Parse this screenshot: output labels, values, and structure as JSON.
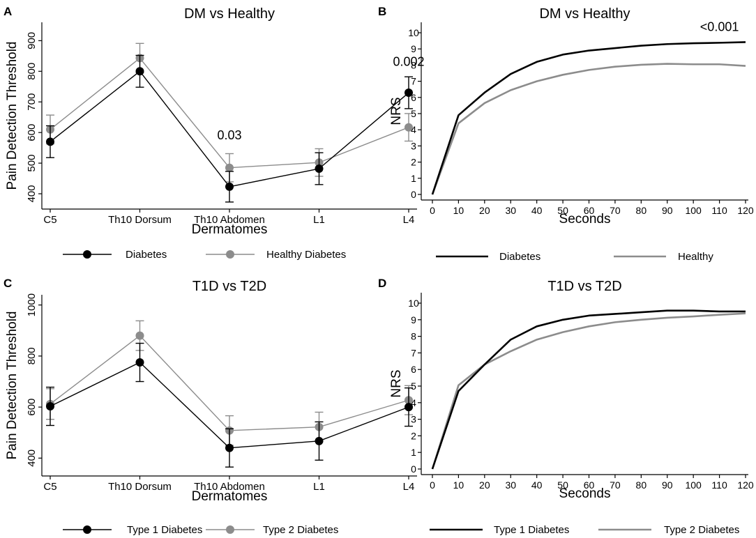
{
  "figure": {
    "panels": [
      "A",
      "B",
      "C",
      "D"
    ],
    "x_label_dermatomes": "Dermatomes",
    "x_label_seconds": "Seconds"
  },
  "colors": {
    "primary": "#000000",
    "secondary": "#8c8c8c",
    "axis": "#000000"
  },
  "chart_data": [
    {
      "panel": "A",
      "type": "line",
      "title": "DM vs Healthy",
      "xlabel": "Dermatomes",
      "ylabel": "Pain Detection Threshold",
      "categories": [
        "C5",
        "Th10 Dorsum",
        "Th10 Abdomen",
        "L1",
        "L4"
      ],
      "yticks": [
        400,
        500,
        600,
        700,
        800,
        900
      ],
      "ylim": [
        350,
        960
      ],
      "series": [
        {
          "name": "Diabetes",
          "color": "#000000",
          "values": [
            570,
            800,
            423,
            482,
            730
          ],
          "err": [
            52,
            52,
            50,
            52,
            52
          ]
        },
        {
          "name": "Healthy Diabetes",
          "color": "#8c8c8c",
          "values": [
            610,
            843,
            485,
            502,
            617
          ],
          "err": [
            47,
            48,
            46,
            45,
            45
          ]
        }
      ],
      "annotations": [
        {
          "text": "0.03",
          "category": "Th10 Abdomen",
          "y": 578
        },
        {
          "text": "0.002",
          "category": "L4",
          "y": 818
        }
      ],
      "legend": [
        "Diabetes",
        "Healthy Diabetes"
      ]
    },
    {
      "panel": "B",
      "type": "line",
      "title": "DM vs Healthy",
      "xlabel": "Seconds",
      "ylabel": "NRS",
      "x": [
        0,
        10,
        20,
        30,
        40,
        50,
        60,
        70,
        80,
        90,
        100,
        110,
        120
      ],
      "xticks": [
        0,
        10,
        20,
        30,
        40,
        50,
        60,
        70,
        80,
        90,
        100,
        110,
        120
      ],
      "yticks": [
        0,
        1,
        2,
        3,
        4,
        5,
        6,
        7,
        8,
        9,
        10
      ],
      "ylim": [
        0,
        10
      ],
      "series": [
        {
          "name": "Diabetes",
          "color": "#000000",
          "values": [
            0,
            4.9,
            6.3,
            7.45,
            8.2,
            8.65,
            8.9,
            9.05,
            9.2,
            9.3,
            9.35,
            9.38,
            9.42
          ]
        },
        {
          "name": "Healthy",
          "color": "#8c8c8c",
          "values": [
            0,
            4.4,
            5.65,
            6.45,
            7.0,
            7.4,
            7.7,
            7.9,
            8.02,
            8.08,
            8.05,
            8.05,
            7.95
          ]
        }
      ],
      "annotations": [
        {
          "text": "<0.001",
          "x": 110,
          "y": 10.1
        }
      ],
      "legend": [
        "Diabetes",
        "Healthy"
      ]
    },
    {
      "panel": "C",
      "type": "line",
      "title": "T1D vs T2D",
      "xlabel": "Dermatomes",
      "ylabel": "Pain Detection Threshold",
      "categories": [
        "C5",
        "Th10 Dorsum",
        "Th10 Abdomen",
        "L1",
        "L4"
      ],
      "yticks": [
        400,
        600,
        800,
        1000
      ],
      "ylim": [
        330,
        1040
      ],
      "series": [
        {
          "name": "Type 1 Diabetes",
          "color": "#000000",
          "values": [
            603,
            775,
            440,
            467,
            600
          ],
          "err": [
            75,
            75,
            75,
            75,
            75
          ]
        },
        {
          "name": "Type 2 Diabetes",
          "color": "#8c8c8c",
          "values": [
            612,
            880,
            508,
            522,
            627
          ],
          "err": [
            60,
            58,
            58,
            58,
            57
          ]
        }
      ],
      "legend": [
        "Type 1 Diabetes",
        "Type 2 Diabetes"
      ]
    },
    {
      "panel": "D",
      "type": "line",
      "title": "T1D vs T2D",
      "xlabel": "Seconds",
      "ylabel": "NRS",
      "x": [
        0,
        10,
        20,
        30,
        40,
        50,
        60,
        70,
        80,
        90,
        100,
        110,
        120
      ],
      "xticks": [
        0,
        10,
        20,
        30,
        40,
        50,
        60,
        70,
        80,
        90,
        100,
        110,
        120
      ],
      "yticks": [
        0,
        1,
        2,
        3,
        4,
        5,
        6,
        7,
        8,
        9,
        10
      ],
      "ylim": [
        0,
        10
      ],
      "series": [
        {
          "name": "Type 1 Diabetes",
          "color": "#000000",
          "values": [
            0,
            4.7,
            6.3,
            7.8,
            8.6,
            9.0,
            9.25,
            9.35,
            9.45,
            9.55,
            9.55,
            9.5,
            9.5
          ]
        },
        {
          "name": "Type 2 Diabetes",
          "color": "#8c8c8c",
          "values": [
            0,
            5.05,
            6.3,
            7.1,
            7.8,
            8.25,
            8.6,
            8.85,
            9.0,
            9.12,
            9.2,
            9.3,
            9.38
          ]
        }
      ],
      "legend": [
        "Type 1 Diabetes",
        "Type 2 Diabetes"
      ]
    }
  ]
}
